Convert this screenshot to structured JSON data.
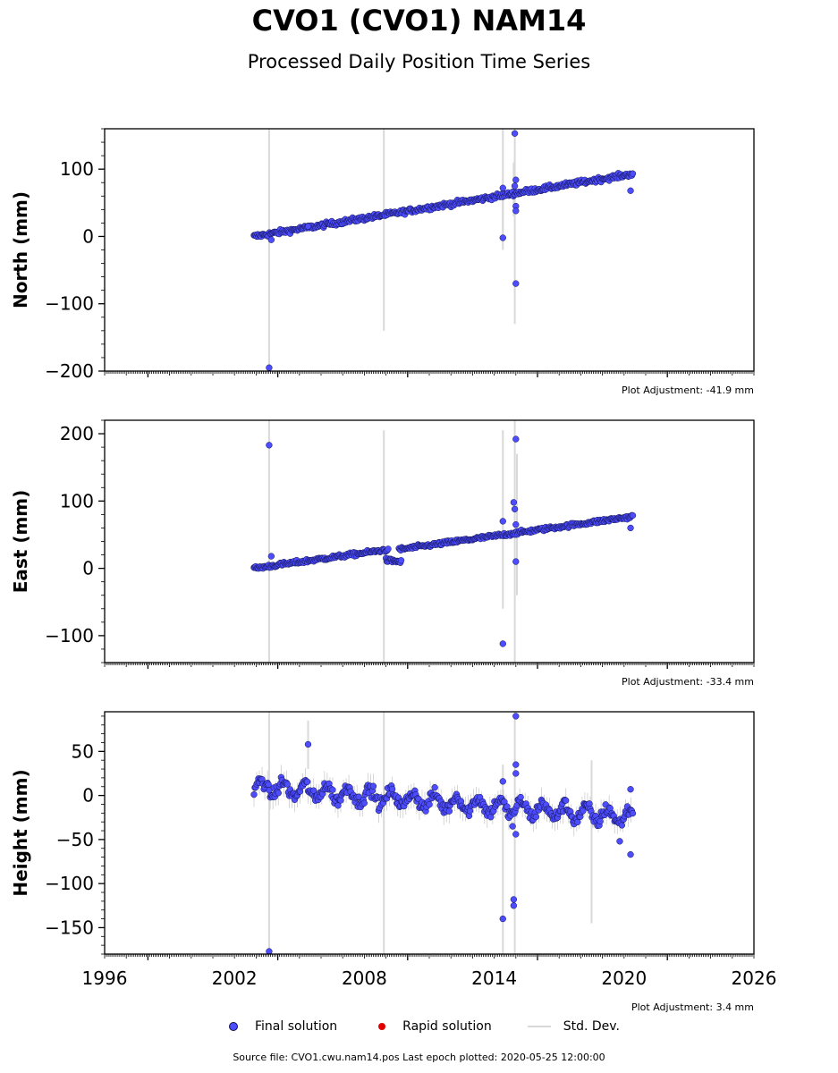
{
  "title": "CVO1 (CVO1) NAM14",
  "subtitle": "Processed Daily Position Time Series",
  "legend": {
    "final": "Final solution",
    "rapid": "Rapid solution",
    "std": "Std. Dev."
  },
  "footer": "Source file: CVO1.cwu.nam14.pos  Last epoch plotted: 2020-05-25 12:00:00",
  "colors": {
    "final_fill": "#4d4dff",
    "final_edge": "#10104a",
    "rapid": "#e00000",
    "std_dev": "#d9d9d9",
    "std_dark": "#999999"
  },
  "chart_data": [
    {
      "type": "scatter",
      "ylabel": "North (mm)",
      "adjustment": "Plot Adjustment: -41.9 mm",
      "xlim": [
        1996,
        2026
      ],
      "ylim": [
        -200,
        160
      ],
      "yticks": [
        -200,
        -100,
        0,
        100
      ],
      "xticks": [
        1996,
        2002,
        2008,
        2014,
        2020,
        2026
      ],
      "grid": false,
      "legend_position": "bottom-center",
      "trend": [
        [
          2002.9,
          0
        ],
        [
          2020.4,
          93
        ]
      ],
      "noise": 2.5,
      "outliers": [
        [
          2003.6,
          -195
        ],
        [
          2003.7,
          -5
        ],
        [
          2005.4,
          15
        ],
        [
          2014.4,
          -2
        ],
        [
          2014.95,
          153
        ],
        [
          2015.0,
          84
        ],
        [
          2015.0,
          45
        ],
        [
          2015.0,
          38
        ],
        [
          2015.0,
          -70
        ],
        [
          2020.3,
          68
        ],
        [
          2014.4,
          72
        ],
        [
          2014.95,
          75
        ]
      ],
      "std_bars": [
        [
          2003.6,
          -200,
          160
        ],
        [
          2008.9,
          -140,
          160
        ],
        [
          2014.4,
          10,
          160
        ],
        [
          2014.4,
          -20,
          60
        ],
        [
          2014.95,
          -130,
          160
        ],
        [
          2014.9,
          30,
          110
        ]
      ]
    },
    {
      "type": "scatter",
      "ylabel": "East (mm)",
      "adjustment": "Plot Adjustment: -33.4 mm",
      "xlim": [
        1996,
        2026
      ],
      "ylim": [
        -140,
        220
      ],
      "yticks": [
        -100,
        0,
        100,
        200
      ],
      "xticks": [
        1996,
        2002,
        2008,
        2014,
        2020,
        2026
      ],
      "grid": false,
      "legend_position": "bottom-center",
      "segments": [
        {
          "x0": 2002.9,
          "y0": 0,
          "x1": 2009.1,
          "y1": 28
        },
        {
          "x0": 2009.0,
          "y0": 12,
          "x1": 2009.7,
          "y1": 10
        },
        {
          "x0": 2009.6,
          "y0": 28,
          "x1": 2020.4,
          "y1": 77
        }
      ],
      "noise": 2.0,
      "outliers": [
        [
          2003.6,
          183
        ],
        [
          2003.7,
          18
        ],
        [
          2014.4,
          70
        ],
        [
          2014.4,
          -112
        ],
        [
          2014.9,
          98
        ],
        [
          2014.95,
          88
        ],
        [
          2015.0,
          192
        ],
        [
          2015.0,
          65
        ],
        [
          2015.0,
          10
        ],
        [
          2020.3,
          60
        ]
      ],
      "std_bars": [
        [
          2003.6,
          -140,
          220
        ],
        [
          2008.9,
          -140,
          205
        ],
        [
          2014.4,
          -60,
          205
        ],
        [
          2014.95,
          -140,
          220
        ],
        [
          2015.05,
          -40,
          170
        ]
      ]
    },
    {
      "type": "scatter",
      "ylabel": "Height (mm)",
      "adjustment": "Plot Adjustment: 3.4 mm",
      "xlim": [
        1996,
        2026
      ],
      "ylim": [
        -180,
        95
      ],
      "yticks": [
        -150,
        -100,
        -50,
        0,
        50
      ],
      "xticks": [
        1996,
        2002,
        2008,
        2014,
        2020,
        2026
      ],
      "xticklabels": [
        "1996",
        "2002",
        "2008",
        "2014",
        "2020",
        "2026"
      ],
      "grid": false,
      "legend_position": "bottom-center",
      "trend": [
        [
          2002.9,
          10
        ],
        [
          2020.4,
          -25
        ]
      ],
      "seasonal_amplitude": 8,
      "noise": 5,
      "outliers": [
        [
          2003.6,
          -177
        ],
        [
          2005.4,
          58
        ],
        [
          2014.4,
          -140
        ],
        [
          2014.4,
          16
        ],
        [
          2014.9,
          -118
        ],
        [
          2014.9,
          -125
        ],
        [
          2015.0,
          90
        ],
        [
          2015.0,
          35
        ],
        [
          2015.0,
          25
        ],
        [
          2015.0,
          -44
        ],
        [
          2014.85,
          -35
        ],
        [
          2019.8,
          -52
        ],
        [
          2020.3,
          7
        ],
        [
          2020.3,
          -67
        ]
      ],
      "std_bars": [
        [
          2003.6,
          -180,
          95
        ],
        [
          2008.9,
          -180,
          95
        ],
        [
          2014.4,
          -180,
          35
        ],
        [
          2014.95,
          -180,
          95
        ],
        [
          2018.5,
          -145,
          40
        ],
        [
          2005.4,
          30,
          85
        ]
      ]
    }
  ]
}
